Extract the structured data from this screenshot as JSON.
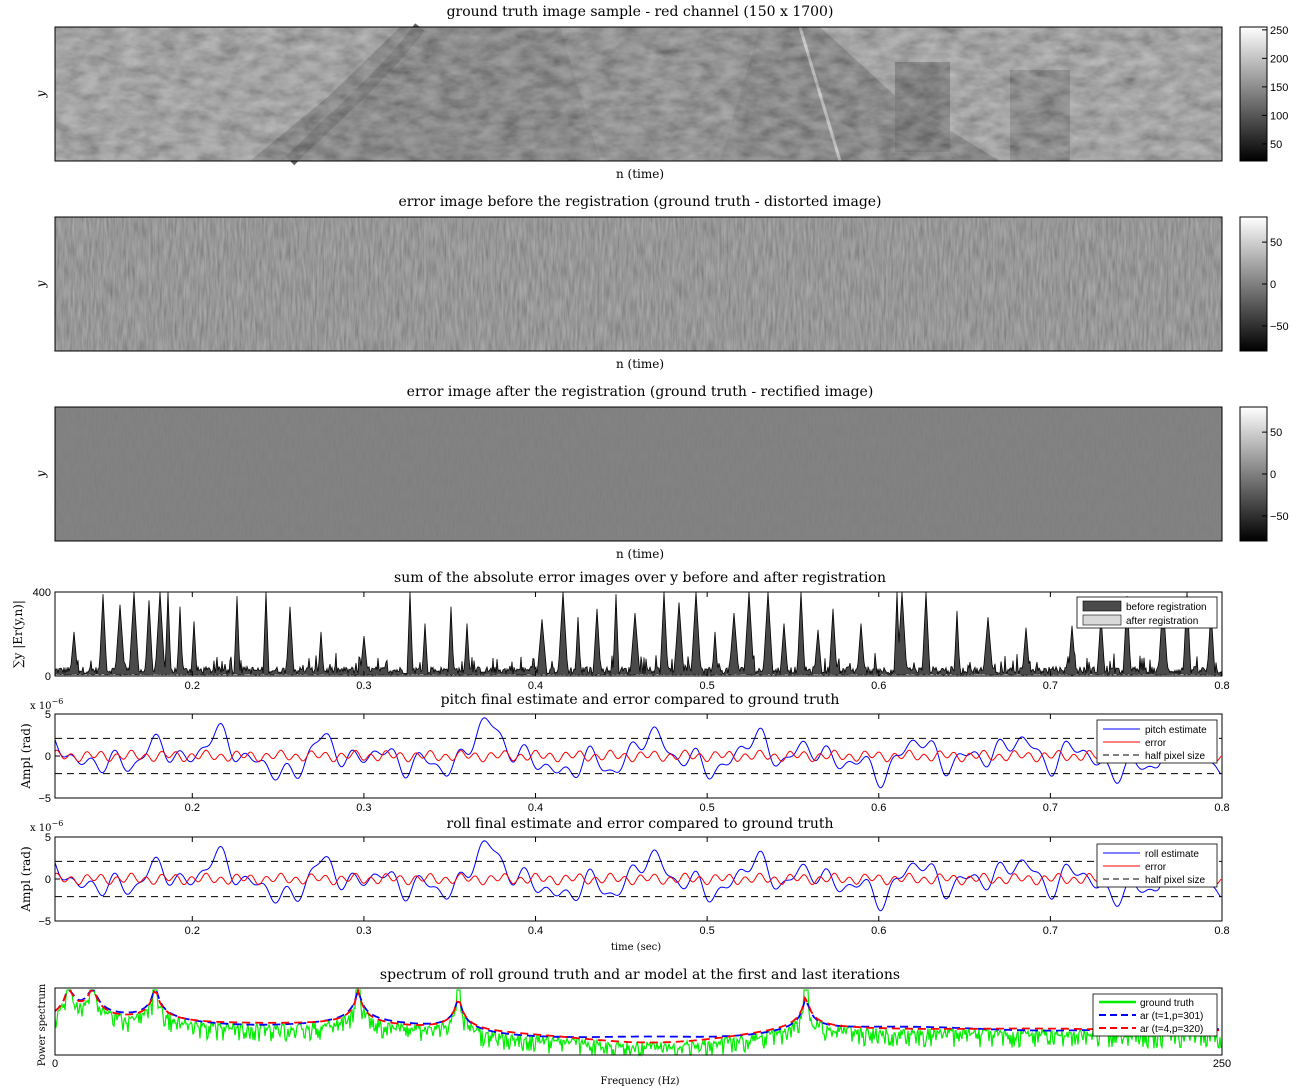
{
  "chart_data": [
    {
      "id": "img1",
      "type": "heatmap",
      "title": "ground truth image sample - red channel (150 x 1700)",
      "xlabel": "n (time)",
      "ylabel": "y",
      "colorbar": {
        "range": [
          20,
          255
        ],
        "ticks": [
          50,
          100,
          150,
          200,
          250
        ]
      }
    },
    {
      "id": "img2",
      "type": "heatmap",
      "title": "error image before the registration (ground truth - distorted image)",
      "xlabel": "n (time)",
      "ylabel": "y",
      "colorbar": {
        "range": [
          -80,
          80
        ],
        "ticks": [
          -50,
          0,
          50
        ],
        "tick_labels": [
          "−50",
          "0",
          "50"
        ]
      }
    },
    {
      "id": "img3",
      "type": "heatmap",
      "title": "error image after the registration (ground truth - rectified image)",
      "xlabel": "n (time)",
      "ylabel": "y",
      "colorbar": {
        "range": [
          -80,
          80
        ],
        "ticks": [
          -50,
          0,
          50
        ],
        "tick_labels": [
          "−50",
          "0",
          "50"
        ]
      }
    },
    {
      "id": "sum",
      "type": "area",
      "title": "sum of the absolute error images over y before and after registration",
      "ylabel": "∑y |Er(y,n)|",
      "xlim": [
        0.12,
        0.8
      ],
      "ylim": [
        0,
        400
      ],
      "xticks": [
        0.2,
        0.3,
        0.4,
        0.5,
        0.6,
        0.7,
        0.8
      ],
      "yticks": [
        0,
        400
      ],
      "legend": "top-right",
      "series": [
        {
          "name": "before registration",
          "color": "#4a4a4a"
        },
        {
          "name": "after registration",
          "color": "#d9d9d9"
        }
      ],
      "peaks": [
        {
          "x": 0.131,
          "y": 210
        },
        {
          "x": 0.148,
          "y": 390
        },
        {
          "x": 0.158,
          "y": 340
        },
        {
          "x": 0.166,
          "y": 400
        },
        {
          "x": 0.175,
          "y": 360
        },
        {
          "x": 0.181,
          "y": 400
        },
        {
          "x": 0.186,
          "y": 400
        },
        {
          "x": 0.193,
          "y": 330
        },
        {
          "x": 0.201,
          "y": 260
        },
        {
          "x": 0.226,
          "y": 380
        },
        {
          "x": 0.243,
          "y": 400
        },
        {
          "x": 0.257,
          "y": 330
        },
        {
          "x": 0.275,
          "y": 210
        },
        {
          "x": 0.3,
          "y": 190
        },
        {
          "x": 0.327,
          "y": 400
        },
        {
          "x": 0.336,
          "y": 250
        },
        {
          "x": 0.351,
          "y": 330
        },
        {
          "x": 0.36,
          "y": 250
        },
        {
          "x": 0.404,
          "y": 270
        },
        {
          "x": 0.416,
          "y": 400
        },
        {
          "x": 0.425,
          "y": 280
        },
        {
          "x": 0.436,
          "y": 320
        },
        {
          "x": 0.447,
          "y": 390
        },
        {
          "x": 0.458,
          "y": 300
        },
        {
          "x": 0.475,
          "y": 400
        },
        {
          "x": 0.484,
          "y": 350
        },
        {
          "x": 0.494,
          "y": 400
        },
        {
          "x": 0.505,
          "y": 210
        },
        {
          "x": 0.516,
          "y": 300
        },
        {
          "x": 0.525,
          "y": 400
        },
        {
          "x": 0.536,
          "y": 400
        },
        {
          "x": 0.545,
          "y": 250
        },
        {
          "x": 0.555,
          "y": 400
        },
        {
          "x": 0.565,
          "y": 220
        },
        {
          "x": 0.574,
          "y": 320
        },
        {
          "x": 0.59,
          "y": 250
        },
        {
          "x": 0.611,
          "y": 400
        },
        {
          "x": 0.614,
          "y": 400
        },
        {
          "x": 0.628,
          "y": 400
        },
        {
          "x": 0.646,
          "y": 310
        },
        {
          "x": 0.664,
          "y": 280
        },
        {
          "x": 0.686,
          "y": 230
        },
        {
          "x": 0.713,
          "y": 240
        },
        {
          "x": 0.73,
          "y": 290
        },
        {
          "x": 0.745,
          "y": 380
        },
        {
          "x": 0.766,
          "y": 360
        },
        {
          "x": 0.78,
          "y": 400
        },
        {
          "x": 0.794,
          "y": 320
        }
      ]
    },
    {
      "id": "pitch",
      "type": "line",
      "title": "pitch final estimate and error compared to ground truth",
      "ylabel": "Ampl (rad)",
      "yscale_label": "x 10",
      "yscale_exponent": "−6",
      "xlim": [
        0.12,
        0.8
      ],
      "ylim": [
        -5,
        5
      ],
      "xticks": [
        0.2,
        0.3,
        0.4,
        0.5,
        0.6,
        0.7,
        0.8
      ],
      "yticks": [
        -5,
        0,
        5
      ],
      "ytick_labels": [
        "−5",
        "0",
        "5"
      ],
      "half_pixel_level": 2.1,
      "legend": "top-right",
      "series": [
        {
          "name": "pitch estimate",
          "color": "#0000ff"
        },
        {
          "name": "error",
          "color": "#ff0000"
        },
        {
          "name": "half pixel size",
          "color": "#000000"
        }
      ]
    },
    {
      "id": "roll",
      "type": "line",
      "title": "roll final estimate and error compared to ground truth",
      "ylabel": "Ampl (rad)",
      "xlabel": "time (sec)",
      "yscale_label": "x 10",
      "yscale_exponent": "−6",
      "xlim": [
        0.12,
        0.8
      ],
      "ylim": [
        -5,
        5
      ],
      "xticks": [
        0.2,
        0.3,
        0.4,
        0.5,
        0.6,
        0.7,
        0.8
      ],
      "yticks": [
        -5,
        0,
        5
      ],
      "ytick_labels": [
        "−5",
        "0",
        "5"
      ],
      "half_pixel_level": 2.1,
      "legend": "top-right",
      "series": [
        {
          "name": "roll estimate",
          "color": "#0000ff"
        },
        {
          "name": "error",
          "color": "#ff0000"
        },
        {
          "name": "half pixel size",
          "color": "#000000"
        }
      ]
    },
    {
      "id": "spec",
      "type": "line",
      "title": "spectrum of roll ground truth and ar model at the first and last iterations",
      "ylabel": "Power spectrum",
      "xlabel": "Frequency (Hz)",
      "xlim": [
        0,
        250
      ],
      "xticks": [
        0,
        250
      ],
      "resonance_peaks_hz": [
        3,
        8,
        21.5,
        65,
        86.5,
        161
      ],
      "legend": "top-right",
      "series": [
        {
          "name": "ground truth",
          "color": "#00ee00"
        },
        {
          "name": "ar (t=1,p=301)",
          "color": "#0000ff"
        },
        {
          "name": "ar (t=4,p=320)",
          "color": "#ff0000"
        }
      ]
    }
  ]
}
